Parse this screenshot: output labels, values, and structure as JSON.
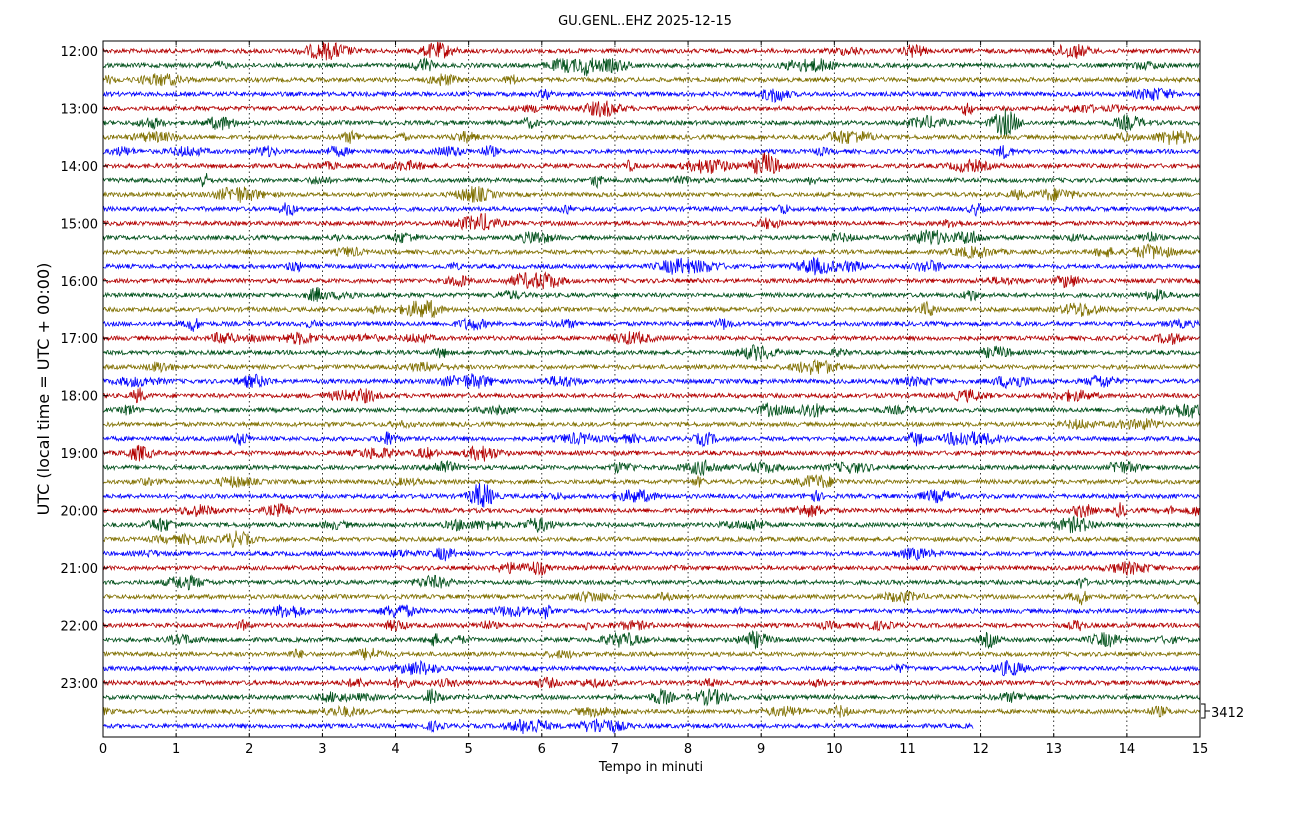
{
  "chart_data": {
    "type": "line",
    "title": "GU.GENL..EHZ 2025-12-15",
    "xlabel": "Tempo in minuti",
    "ylabel": "UTC (local time = UTC + 00:00)",
    "xlim": [
      0,
      15
    ],
    "x_ticks": [
      "0",
      "1",
      "2",
      "3",
      "4",
      "5",
      "6",
      "7",
      "8",
      "9",
      "10",
      "11",
      "12",
      "13",
      "14",
      "15"
    ],
    "y_ticks": [
      "12:00",
      "13:00",
      "14:00",
      "15:00",
      "16:00",
      "17:00",
      "18:00",
      "19:00",
      "20:00",
      "21:00",
      "22:00",
      "23:00"
    ],
    "traces_per_hour": 4,
    "trace_count": 48,
    "minutes_per_trace": 15,
    "last_trace_end_minute": 11.9,
    "trace_colors": [
      "#b30000",
      "#00501a",
      "#807000",
      "#0000ff"
    ],
    "scale_label": "3412",
    "grid": "vertical dotted at each minute"
  }
}
